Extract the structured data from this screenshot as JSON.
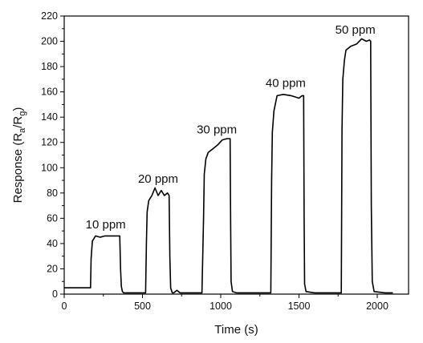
{
  "chart_data": {
    "type": "line",
    "title": "",
    "xlabel": "Time (s)",
    "ylabel": {
      "main": "Response (R",
      "sub1": "a",
      "mid": "/R",
      "sub2": "g",
      "end": ")"
    },
    "xlim": [
      0,
      2200
    ],
    "ylim": [
      0,
      220
    ],
    "x_ticks": [
      0,
      500,
      1000,
      1500,
      2000
    ],
    "y_ticks": [
      0,
      20,
      40,
      60,
      80,
      100,
      120,
      140,
      160,
      180,
      200,
      220
    ],
    "grid": false,
    "legend": "none",
    "series": [
      {
        "x": [
          0,
          168,
          172,
          180,
          200,
          230,
          260,
          300,
          340,
          355,
          360,
          365,
          372,
          380,
          400,
          450,
          500,
          520,
          525,
          530,
          540,
          560,
          580,
          600,
          620,
          640,
          660,
          670,
          675,
          680,
          690,
          700,
          720,
          740,
          760,
          780,
          800,
          880,
          890,
          895,
          905,
          920,
          950,
          980,
          1010,
          1040,
          1060,
          1063,
          1066,
          1075,
          1100,
          1200,
          1290,
          1320,
          1325,
          1330,
          1340,
          1360,
          1400,
          1450,
          1500,
          1520,
          1530,
          1533,
          1536,
          1545,
          1600,
          1700,
          1765,
          1770,
          1775,
          1780,
          1790,
          1800,
          1830,
          1870,
          1900,
          1930,
          1950,
          1958,
          1962,
          1968,
          1980,
          2050,
          2100
        ],
        "y": [
          5,
          5,
          28,
          42,
          46,
          45,
          46,
          46,
          46,
          46,
          20,
          6,
          2,
          1,
          1,
          1,
          1,
          1,
          40,
          65,
          74,
          78,
          84,
          78,
          82,
          78,
          80,
          78,
          30,
          5,
          1,
          1,
          3,
          1,
          1,
          1,
          1,
          1,
          60,
          95,
          107,
          112,
          115,
          118,
          122,
          123,
          123,
          60,
          10,
          2,
          1,
          1,
          1,
          1,
          90,
          128,
          145,
          157,
          158,
          157,
          155,
          157,
          157,
          60,
          8,
          2,
          1,
          1,
          1,
          1,
          130,
          170,
          185,
          193,
          196,
          198,
          202,
          200,
          201,
          200,
          70,
          10,
          2,
          1,
          1
        ]
      }
    ],
    "annotations": [
      {
        "text": "10 ppm",
        "x": 265,
        "y": 52
      },
      {
        "text": "20 ppm",
        "x": 600,
        "y": 88
      },
      {
        "text": "30 ppm",
        "x": 975,
        "y": 127
      },
      {
        "text": "40 ppm",
        "x": 1415,
        "y": 164
      },
      {
        "text": "50 ppm",
        "x": 1860,
        "y": 206
      }
    ]
  }
}
